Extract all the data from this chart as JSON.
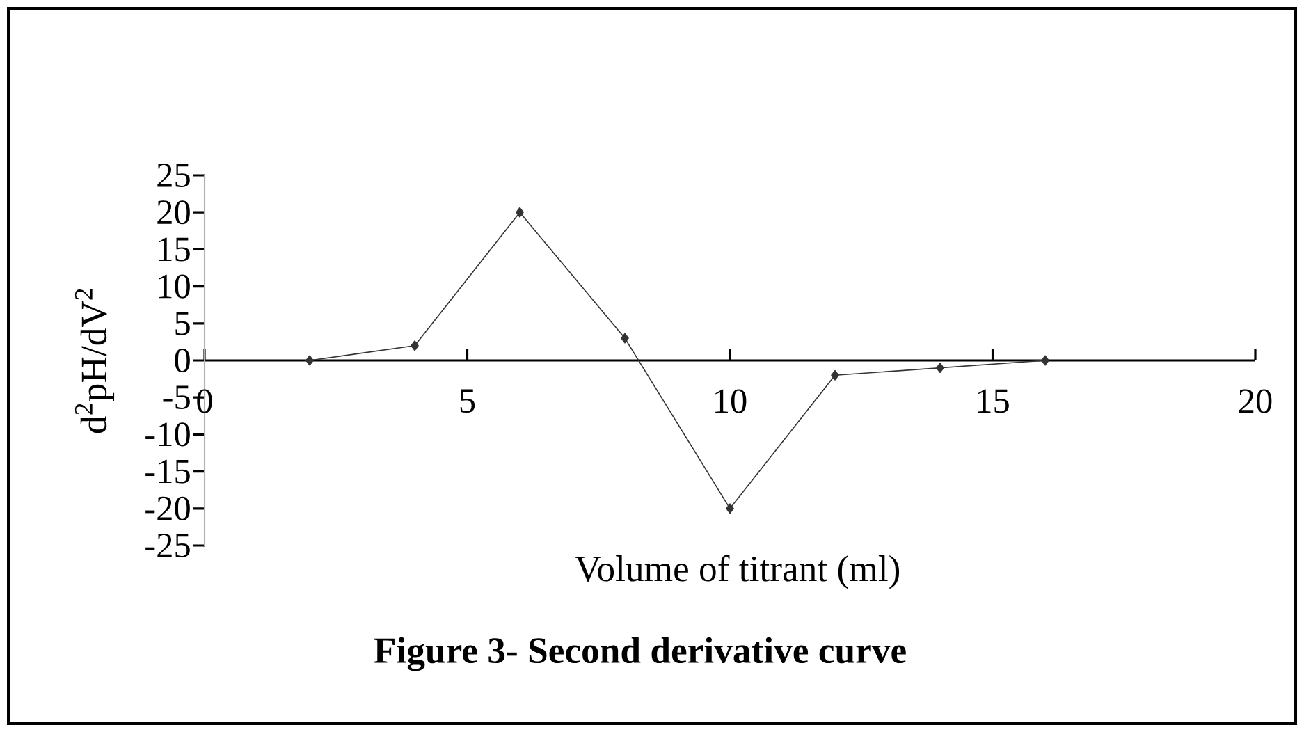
{
  "chart_data": {
    "type": "line",
    "title": "**Figure 3- Second derivative curve**",
    "xlabel": "Volume of titrant (ml)",
    "ylabel": "d$^{2}$pH/dV$^{2}$",
    "x": [
      2,
      4,
      6,
      8,
      10,
      12,
      14,
      16
    ],
    "series": [
      {
        "color": "#333333",
        "values": [
          0,
          2,
          20,
          3,
          -20,
          -2,
          -1,
          0
        ]
      }
    ],
    "xlim": [
      0,
      20
    ],
    "ylim": [
      -25,
      25
    ],
    "xticks": [
      0,
      5,
      10,
      15,
      20
    ],
    "yticks": [
      -25,
      -20,
      -15,
      -10,
      -5,
      0,
      5,
      10,
      15,
      20,
      25
    ],
    "marker": "diamond",
    "line_style": "solid",
    "grid": false
  }
}
